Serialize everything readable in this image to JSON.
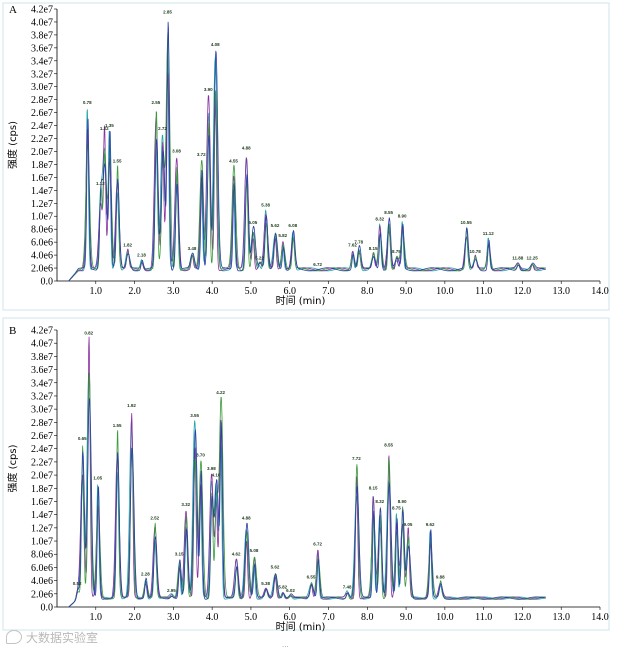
{
  "chart_data": [
    {
      "type": "line",
      "panel_label": "A",
      "xlabel": "时间 (min)",
      "ylabel": "强度 (cps)",
      "xlim": [
        0,
        14
      ],
      "ylim": [
        0,
        42000000.0
      ],
      "xticks": [
        1.0,
        2.0,
        3.0,
        4.0,
        5.0,
        6.0,
        7.0,
        8.0,
        9.0,
        10.0,
        11.0,
        12.0,
        13.0,
        14.0
      ],
      "xtick_labels": [
        "1.0",
        "2.0",
        "3.0",
        "4.0",
        "5.0",
        "6.0",
        "7.0",
        "8.0",
        "9.0",
        "10.0",
        "11.0",
        "12.0",
        "13.0",
        "14.0"
      ],
      "yticks": [
        0,
        2000000.0,
        4000000.0,
        6000000.0,
        8000000.0,
        10000000.0,
        12000000.0,
        14000000.0,
        16000000.0,
        18000000.0,
        20000000.0,
        22000000.0,
        24000000.0,
        26000000.0,
        28000000.0,
        30000000.0,
        32000000.0,
        34000000.0,
        36000000.0,
        38000000.0,
        40000000.0,
        42000000.0
      ],
      "ytick_labels": [
        "0.0",
        "2.0e6",
        "4.0e6",
        "6.0e6",
        "8.0e6",
        "1.0e7",
        "1.2e7",
        "1.4e7",
        "1.6e7",
        "1.8e7",
        "2.0e7",
        "2.2e7",
        "2.4e7",
        "2.6e7",
        "2.8e7",
        "3.0e7",
        "3.2e7",
        "3.4e7",
        "3.6e7",
        "3.8e7",
        "4.0e7",
        "4.2e7"
      ],
      "baseline": 2000000.0,
      "peaks": [
        {
          "rt": 0.78,
          "h": 27000000.0,
          "label": "0.78"
        },
        {
          "rt": 1.12,
          "h": 14500000.0,
          "label": "1.12"
        },
        {
          "rt": 1.22,
          "h": 23000000.0,
          "label": "1.22"
        },
        {
          "rt": 1.35,
          "h": 23500000.0,
          "label": "1.35"
        },
        {
          "rt": 1.55,
          "h": 18000000.0,
          "label": "1.55"
        },
        {
          "rt": 1.82,
          "h": 5000000.0,
          "label": "1.82"
        },
        {
          "rt": 2.18,
          "h": 3500000.0,
          "label": "2.18"
        },
        {
          "rt": 2.55,
          "h": 27000000.0,
          "label": "2.55"
        },
        {
          "rt": 2.72,
          "h": 23000000.0,
          "label": "2.72"
        },
        {
          "rt": 2.85,
          "h": 41000000.0,
          "label": "2.85"
        },
        {
          "rt": 3.08,
          "h": 19500000.0,
          "label": "3.08"
        },
        {
          "rt": 3.48,
          "h": 4500000.0,
          "label": "3.48"
        },
        {
          "rt": 3.72,
          "h": 19000000.0,
          "label": "3.72"
        },
        {
          "rt": 3.9,
          "h": 29000000.0,
          "label": "3.90"
        },
        {
          "rt": 4.08,
          "h": 36000000.0,
          "label": "4.08"
        },
        {
          "rt": 4.55,
          "h": 18000000.0,
          "label": "4.55"
        },
        {
          "rt": 4.88,
          "h": 20000000.0,
          "label": "4.88"
        },
        {
          "rt": 5.05,
          "h": 8500000.0,
          "label": "5.05"
        },
        {
          "rt": 5.22,
          "h": 3000000.0,
          "label": "5.22"
        },
        {
          "rt": 5.38,
          "h": 11200000.0,
          "label": "5.38"
        },
        {
          "rt": 5.62,
          "h": 8000000.0,
          "label": "5.62"
        },
        {
          "rt": 5.82,
          "h": 6500000.0,
          "label": "5.82"
        },
        {
          "rt": 6.08,
          "h": 8000000.0,
          "label": "6.08"
        },
        {
          "rt": 6.72,
          "h": 2000000.0,
          "label": "6.72"
        },
        {
          "rt": 7.62,
          "h": 5000000.0,
          "label": "7.62"
        },
        {
          "rt": 7.78,
          "h": 5500000.0,
          "label": "7.78"
        },
        {
          "rt": 8.15,
          "h": 4500000.0,
          "label": "8.15"
        },
        {
          "rt": 8.32,
          "h": 9000000.0,
          "label": "8.32"
        },
        {
          "rt": 8.55,
          "h": 10000000.0,
          "label": "8.55"
        },
        {
          "rt": 8.75,
          "h": 4000000.0,
          "label": "8.75"
        },
        {
          "rt": 8.9,
          "h": 9500000.0,
          "label": "8.90"
        },
        {
          "rt": 10.55,
          "h": 8500000.0,
          "label": "10.55"
        },
        {
          "rt": 10.78,
          "h": 4000000.0,
          "label": "10.78"
        },
        {
          "rt": 11.12,
          "h": 6800000.0,
          "label": "11.12"
        },
        {
          "rt": 11.88,
          "h": 3000000.0,
          "label": "11.88"
        },
        {
          "rt": 12.25,
          "h": 3000000.0,
          "label": "12.25"
        }
      ]
    },
    {
      "type": "line",
      "panel_label": "B",
      "xlabel": "时间 (min)",
      "ylabel": "强度 (cps)",
      "xlim": [
        0,
        14
      ],
      "ylim": [
        0,
        42000000.0
      ],
      "xticks": [
        1.0,
        2.0,
        3.0,
        4.0,
        5.0,
        6.0,
        7.0,
        8.0,
        9.0,
        10.0,
        11.0,
        12.0,
        13.0,
        14.0
      ],
      "xtick_labels": [
        "1.0",
        "2.0",
        "3.0",
        "4.0",
        "5.0",
        "6.0",
        "7.0",
        "8.0",
        "9.0",
        "10.0",
        "11.0",
        "12.0",
        "13.0",
        "14.0"
      ],
      "yticks": [
        0,
        2000000.0,
        4000000.0,
        6000000.0,
        8000000.0,
        10000000.0,
        12000000.0,
        14000000.0,
        16000000.0,
        18000000.0,
        20000000.0,
        22000000.0,
        24000000.0,
        26000000.0,
        28000000.0,
        30000000.0,
        32000000.0,
        34000000.0,
        36000000.0,
        38000000.0,
        40000000.0,
        42000000.0
      ],
      "ytick_labels": [
        "0.0",
        "2.0e6",
        "4.0e6",
        "6.0e6",
        "8.0e6",
        "1.0e7",
        "1.2e7",
        "1.4e7",
        "1.6e7",
        "1.8e7",
        "2.0e7",
        "2.2e7",
        "2.4e7",
        "2.6e7",
        "2.8e7",
        "3.0e7",
        "3.2e7",
        "3.4e7",
        "3.6e7",
        "3.8e7",
        "4.0e7",
        "4.2e7"
      ],
      "baseline": 1500000.0,
      "peaks": [
        {
          "rt": 0.52,
          "h": 3000000.0,
          "label": "0.52"
        },
        {
          "rt": 0.65,
          "h": 25000000.0,
          "label": "0.65"
        },
        {
          "rt": 0.82,
          "h": 41000000.0,
          "label": "0.82"
        },
        {
          "rt": 1.05,
          "h": 19000000.0,
          "label": "1.05"
        },
        {
          "rt": 1.55,
          "h": 27000000.0,
          "label": "1.55"
        },
        {
          "rt": 1.92,
          "h": 30000000.0,
          "label": "1.92"
        },
        {
          "rt": 2.28,
          "h": 4500000.0,
          "label": "2.28"
        },
        {
          "rt": 2.52,
          "h": 13000000.0,
          "label": "2.52"
        },
        {
          "rt": 2.95,
          "h": 2000000.0,
          "label": "2.95"
        },
        {
          "rt": 3.15,
          "h": 7500000.0,
          "label": "3.15"
        },
        {
          "rt": 3.32,
          "h": 15000000.0,
          "label": "3.32"
        },
        {
          "rt": 3.55,
          "h": 28500000.0,
          "label": "3.55"
        },
        {
          "rt": 3.7,
          "h": 22500000.0,
          "label": "3.70"
        },
        {
          "rt": 3.98,
          "h": 20500000.0,
          "label": "3.98"
        },
        {
          "rt": 4.1,
          "h": 19500000.0,
          "label": "4.10"
        },
        {
          "rt": 4.22,
          "h": 32000000.0,
          "label": "4.22"
        },
        {
          "rt": 4.62,
          "h": 7500000.0,
          "label": "4.62"
        },
        {
          "rt": 4.88,
          "h": 13000000.0,
          "label": "4.88"
        },
        {
          "rt": 5.08,
          "h": 8000000.0,
          "label": "5.08"
        },
        {
          "rt": 5.38,
          "h": 3000000.0,
          "label": "5.38"
        },
        {
          "rt": 5.62,
          "h": 5500000.0,
          "label": "5.62"
        },
        {
          "rt": 5.82,
          "h": 2500000.0,
          "label": "5.82"
        },
        {
          "rt": 6.02,
          "h": 2000000.0,
          "label": "6.02"
        },
        {
          "rt": 6.55,
          "h": 4000000.0,
          "label": "6.55"
        },
        {
          "rt": 6.72,
          "h": 9000000.0,
          "label": "6.72"
        },
        {
          "rt": 7.48,
          "h": 2500000.0,
          "label": "7.48"
        },
        {
          "rt": 7.72,
          "h": 22000000.0,
          "label": "7.72"
        },
        {
          "rt": 8.15,
          "h": 17500000.0,
          "label": "8.15"
        },
        {
          "rt": 8.32,
          "h": 15500000.0,
          "label": "8.32"
        },
        {
          "rt": 8.55,
          "h": 24000000.0,
          "label": "8.55"
        },
        {
          "rt": 8.75,
          "h": 14500000.0,
          "label": "8.75"
        },
        {
          "rt": 8.9,
          "h": 15500000.0,
          "label": "8.90"
        },
        {
          "rt": 9.05,
          "h": 12000000.0,
          "label": "9.05"
        },
        {
          "rt": 9.62,
          "h": 12000000.0,
          "label": "9.62"
        },
        {
          "rt": 9.88,
          "h": 4000000.0,
          "label": "9.88"
        }
      ]
    }
  ],
  "panel_a_label": "A",
  "panel_b_label": "B",
  "watermark_text": "大数据实验室",
  "bottom_mark": "..."
}
